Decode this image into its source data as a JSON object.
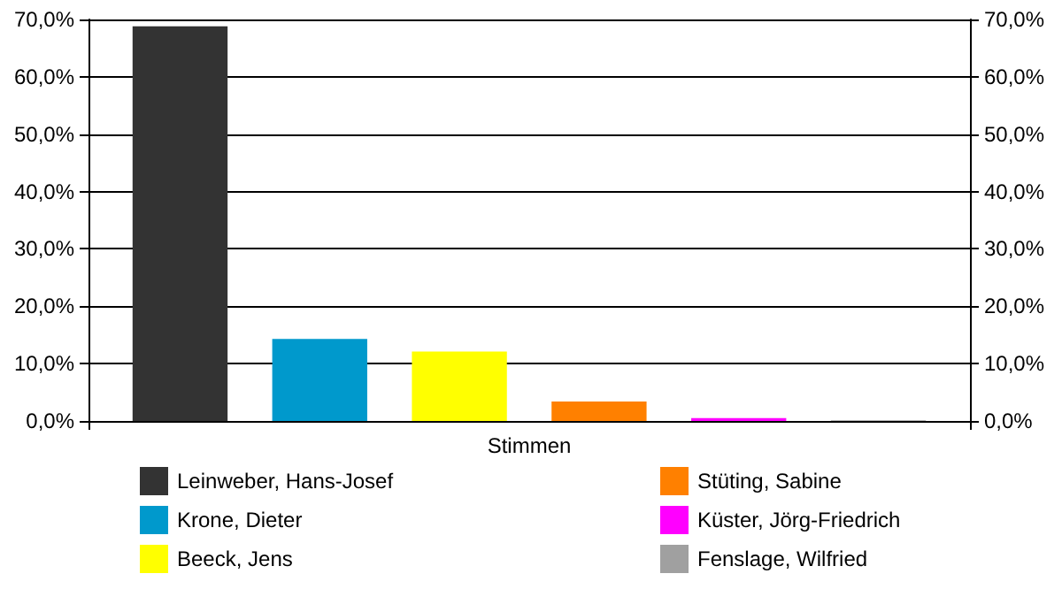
{
  "chart_data": {
    "type": "bar",
    "categories": [
      "Stimmen"
    ],
    "series": [
      {
        "name": "Leinweber, Hans-Josef",
        "color": "#333333",
        "values": [
          68.8
        ]
      },
      {
        "name": "Krone, Dieter",
        "color": "#0099cc",
        "values": [
          14.3
        ]
      },
      {
        "name": "Beeck, Jens",
        "color": "#ffff00",
        "values": [
          12.1
        ]
      },
      {
        "name": "Stüting, Sabine",
        "color": "#ff8000",
        "values": [
          3.4
        ]
      },
      {
        "name": "Küster, Jörg-Friedrich",
        "color": "#ff00ff",
        "values": [
          0.5
        ]
      },
      {
        "name": "Fenslage, Wilfried",
        "color": "#a0a0a0",
        "values": [
          0.1
        ]
      }
    ],
    "ylim": [
      0,
      70
    ],
    "yticks": [
      {
        "value": 0,
        "label": "0,0%"
      },
      {
        "value": 10,
        "label": "10,0%"
      },
      {
        "value": 20,
        "label": "20,0%"
      },
      {
        "value": 30,
        "label": "30,0%"
      },
      {
        "value": 40,
        "label": "40,0%"
      },
      {
        "value": 50,
        "label": "50,0%"
      },
      {
        "value": 60,
        "label": "60,0%"
      },
      {
        "value": 70,
        "label": "70,0%"
      }
    ],
    "grid": "y",
    "legend": "bottom"
  }
}
